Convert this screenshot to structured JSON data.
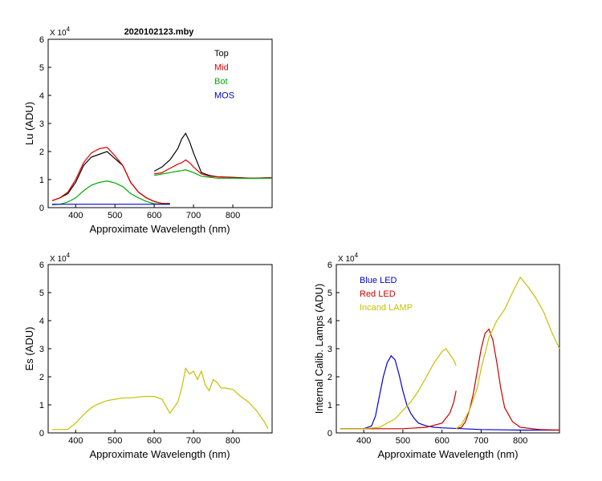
{
  "chart_data": [
    {
      "id": "lu",
      "type": "line",
      "title": "2020102123.mby",
      "xlabel": "Approximate Wavelength (nm)",
      "ylabel": "Lu (ADU)",
      "scale_label": "X 10",
      "scale_exp": "4",
      "xlim": [
        330,
        900
      ],
      "ylim": [
        0,
        6
      ],
      "xticks": [
        400,
        500,
        600,
        700,
        800
      ],
      "yticks": [
        0,
        1,
        2,
        3,
        4,
        5,
        6
      ],
      "legend": [
        {
          "label": "Top",
          "color": "#000000"
        },
        {
          "label": "Mid",
          "color": "#e00000"
        },
        {
          "label": "Bot",
          "color": "#00aa00"
        },
        {
          "label": "MOS",
          "color": "#0000cc"
        }
      ],
      "series": [
        {
          "name": "Top",
          "color": "#000000",
          "segments": [
            {
              "x": [
                340,
                360,
                380,
                400,
                420,
                440,
                460,
                480,
                500,
                520,
                540,
                560,
                580,
                600,
                620,
                640
              ],
              "y": [
                0.25,
                0.35,
                0.5,
                0.9,
                1.5,
                1.8,
                1.9,
                2.0,
                1.75,
                1.5,
                0.9,
                0.55,
                0.35,
                0.22,
                0.15,
                0.15
              ]
            },
            {
              "x": [
                600,
                620,
                640,
                660,
                670,
                680,
                690,
                700,
                720,
                740,
                760,
                800,
                850,
                900
              ],
              "y": [
                1.3,
                1.45,
                1.7,
                2.1,
                2.45,
                2.65,
                2.35,
                1.95,
                1.25,
                1.15,
                1.1,
                1.08,
                1.05,
                1.07
              ]
            }
          ]
        },
        {
          "name": "Mid",
          "color": "#e00000",
          "segments": [
            {
              "x": [
                340,
                360,
                380,
                400,
                420,
                440,
                460,
                480,
                500,
                520,
                540,
                560,
                580,
                600,
                620,
                640
              ],
              "y": [
                0.25,
                0.35,
                0.55,
                1.0,
                1.6,
                1.95,
                2.1,
                2.15,
                1.85,
                1.5,
                0.9,
                0.55,
                0.35,
                0.22,
                0.15,
                0.15
              ]
            },
            {
              "x": [
                600,
                620,
                640,
                660,
                670,
                680,
                690,
                700,
                720,
                740,
                760,
                800,
                850,
                900
              ],
              "y": [
                1.2,
                1.25,
                1.4,
                1.55,
                1.6,
                1.7,
                1.6,
                1.45,
                1.2,
                1.12,
                1.1,
                1.07,
                1.05,
                1.07
              ]
            }
          ]
        },
        {
          "name": "Bot",
          "color": "#00aa00",
          "segments": [
            {
              "x": [
                340,
                360,
                380,
                400,
                420,
                440,
                460,
                480,
                500,
                520,
                540,
                560,
                580,
                600,
                620,
                640
              ],
              "y": [
                0.1,
                0.12,
                0.2,
                0.35,
                0.6,
                0.8,
                0.9,
                0.95,
                0.88,
                0.75,
                0.5,
                0.35,
                0.22,
                0.14,
                0.12,
                0.12
              ]
            },
            {
              "x": [
                600,
                620,
                640,
                660,
                670,
                680,
                690,
                700,
                720,
                740,
                760,
                800,
                850,
                900
              ],
              "y": [
                1.15,
                1.2,
                1.25,
                1.3,
                1.32,
                1.35,
                1.3,
                1.25,
                1.12,
                1.08,
                1.05,
                1.05,
                1.04,
                1.05
              ]
            }
          ]
        },
        {
          "name": "MOS",
          "color": "#0000cc",
          "segments": [
            {
              "x": [
                340,
                380,
                420,
                460,
                500,
                540,
                580,
                620,
                640
              ],
              "y": [
                0.12,
                0.12,
                0.12,
                0.12,
                0.12,
                0.12,
                0.12,
                0.12,
                0.12
              ]
            }
          ]
        }
      ]
    },
    {
      "id": "es",
      "type": "line",
      "title": "",
      "xlabel": "Approximate Wavelength (nm)",
      "ylabel": "Es  (ADU)",
      "scale_label": "X 10",
      "scale_exp": "4",
      "xlim": [
        330,
        900
      ],
      "ylim": [
        0,
        6
      ],
      "xticks": [
        400,
        500,
        600,
        700,
        800
      ],
      "yticks": [
        0,
        1,
        2,
        3,
        4,
        5,
        6
      ],
      "legend": [],
      "series": [
        {
          "name": "Es",
          "color": "#c8c000",
          "segments": [
            {
              "x": [
                340,
                360,
                380,
                400,
                420,
                440,
                460,
                480,
                500,
                520,
                540,
                560,
                580,
                600,
                620,
                640,
                660,
                670,
                680,
                690,
                700,
                710,
                720,
                730,
                740,
                750,
                760,
                770,
                780,
                800,
                820,
                840,
                860,
                880,
                890
              ],
              "y": [
                0.12,
                0.12,
                0.13,
                0.35,
                0.65,
                0.9,
                1.05,
                1.15,
                1.2,
                1.25,
                1.25,
                1.28,
                1.3,
                1.3,
                1.2,
                0.7,
                1.1,
                1.6,
                2.3,
                2.1,
                2.2,
                1.9,
                2.2,
                1.7,
                1.5,
                1.9,
                1.8,
                1.6,
                1.6,
                1.55,
                1.3,
                1.1,
                0.8,
                0.4,
                0.15
              ]
            }
          ]
        }
      ]
    },
    {
      "id": "lamps",
      "type": "line",
      "title": "",
      "xlabel": "Approximate Wavelength (nm)",
      "ylabel": "Internal Calib. Lamps  (ADU)",
      "scale_label": "X 10",
      "scale_exp": "4",
      "xlim": [
        330,
        900
      ],
      "ylim": [
        0,
        6
      ],
      "xticks": [
        400,
        500,
        600,
        700,
        800
      ],
      "yticks": [
        0,
        1,
        2,
        3,
        4,
        5,
        6
      ],
      "legend": [
        {
          "label": "Blue LED",
          "color": "#0000cc"
        },
        {
          "label": "Red LED",
          "color": "#cc0000"
        },
        {
          "label": "Incand LAMP",
          "color": "#c8c000"
        }
      ],
      "series": [
        {
          "name": "Blue LED",
          "color": "#0000cc",
          "segments": [
            {
              "x": [
                340,
                400,
                420,
                430,
                440,
                450,
                460,
                470,
                480,
                490,
                500,
                510,
                520,
                530,
                540,
                560,
                580,
                600,
                700,
                800,
                900
              ],
              "y": [
                0.15,
                0.15,
                0.25,
                0.6,
                1.3,
                2.0,
                2.5,
                2.75,
                2.6,
                2.1,
                1.5,
                1.0,
                0.7,
                0.5,
                0.35,
                0.25,
                0.2,
                0.18,
                0.12,
                0.1,
                0.1
              ]
            }
          ]
        },
        {
          "name": "Red LED",
          "color": "#cc0000",
          "segments": [
            {
              "x": [
                340,
                400,
                500,
                560,
                600,
                620,
                630,
                636
              ],
              "y": [
                0.15,
                0.15,
                0.15,
                0.2,
                0.35,
                0.7,
                1.1,
                1.5
              ]
            },
            {
              "x": [
                636,
                650,
                660,
                670,
                680,
                690,
                700,
                710,
                720,
                730,
                740,
                750,
                760,
                780,
                800,
                850,
                900
              ],
              "y": [
                0.15,
                0.2,
                0.4,
                0.8,
                1.4,
                2.2,
                3.0,
                3.55,
                3.7,
                3.3,
                2.5,
                1.6,
                0.9,
                0.4,
                0.2,
                0.12,
                0.1
              ]
            }
          ]
        },
        {
          "name": "Incand LAMP",
          "color": "#c8c000",
          "segments": [
            {
              "x": [
                340,
                400,
                440,
                480,
                500,
                520,
                540,
                560,
                580,
                600,
                610,
                620,
                630,
                636
              ],
              "y": [
                0.15,
                0.15,
                0.2,
                0.5,
                0.8,
                1.1,
                1.5,
                2.0,
                2.5,
                2.9,
                3.0,
                2.8,
                2.6,
                2.4
              ]
            },
            {
              "x": [
                636,
                650,
                670,
                690,
                700,
                720,
                740,
                760,
                780,
                800,
                820,
                840,
                860,
                880,
                900
              ],
              "y": [
                0.15,
                0.3,
                0.8,
                1.6,
                2.3,
                3.4,
                4.0,
                4.4,
                5.0,
                5.55,
                5.2,
                4.8,
                4.3,
                3.6,
                3.0
              ]
            }
          ]
        }
      ]
    }
  ]
}
